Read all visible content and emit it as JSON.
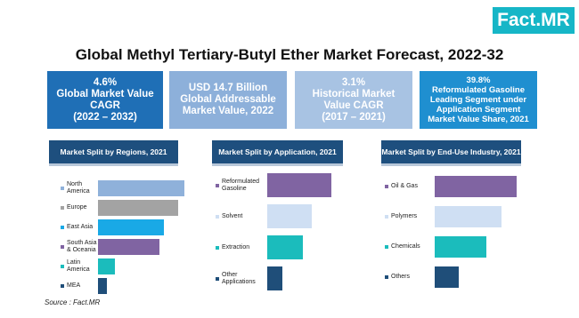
{
  "logo": "Fact.MR",
  "title": "Global Methyl Tertiary-Butyl Ether Market Forecast, 2022-32",
  "stats": [
    {
      "lines": [
        "4.6%",
        "Global Market Value",
        "CAGR",
        "(2022 – 2032)"
      ],
      "color": "#1f6fb6"
    },
    {
      "lines": [
        "USD 14.7 Billion",
        "Global Addressable",
        "Market Value, 2022"
      ],
      "color": "#8db0da"
    },
    {
      "lines": [
        "3.1%",
        "Historical Market",
        "Value CAGR",
        "(2017 – 2021)"
      ],
      "color": "#a8c3e3"
    },
    {
      "lines": [
        "39.8%",
        "Reformulated Gasoline",
        "Leading Segment under",
        "Application Segment",
        "Market Value Share, 2021"
      ],
      "color": "#1f8fd0"
    }
  ],
  "chart_data": [
    {
      "type": "bar",
      "title": "Market Split by Regions, 2021",
      "categories": [
        "North America",
        "Europe",
        "East Asia",
        "South Asia & Oceania",
        "Latin America",
        "MEA"
      ],
      "values": [
        97,
        90,
        74,
        69,
        19,
        10
      ],
      "colors": [
        "#8fb1da",
        "#a3a3a3",
        "#19a9e6",
        "#8064a2",
        "#1bbcbc",
        "#1f4e79"
      ]
    },
    {
      "type": "bar",
      "title": "Market Split by Application, 2021",
      "categories": [
        "Reformulated Gasoline",
        "Solvent",
        "Extraction",
        "Other Applications"
      ],
      "values": [
        72,
        50,
        40,
        17
      ],
      "colors": [
        "#8064a2",
        "#cfdff3",
        "#1bbcbc",
        "#1f4e79"
      ]
    },
    {
      "type": "bar",
      "title": "Market Split by End-Use Industry, 2021",
      "categories": [
        "Oil & Gas",
        "Polymers",
        "Chemicals",
        "Others"
      ],
      "values": [
        92,
        75,
        58,
        27
      ],
      "colors": [
        "#8064a2",
        "#cfdff3",
        "#1bbcbc",
        "#1f4e79"
      ]
    }
  ],
  "source": "Source : Fact.MR"
}
